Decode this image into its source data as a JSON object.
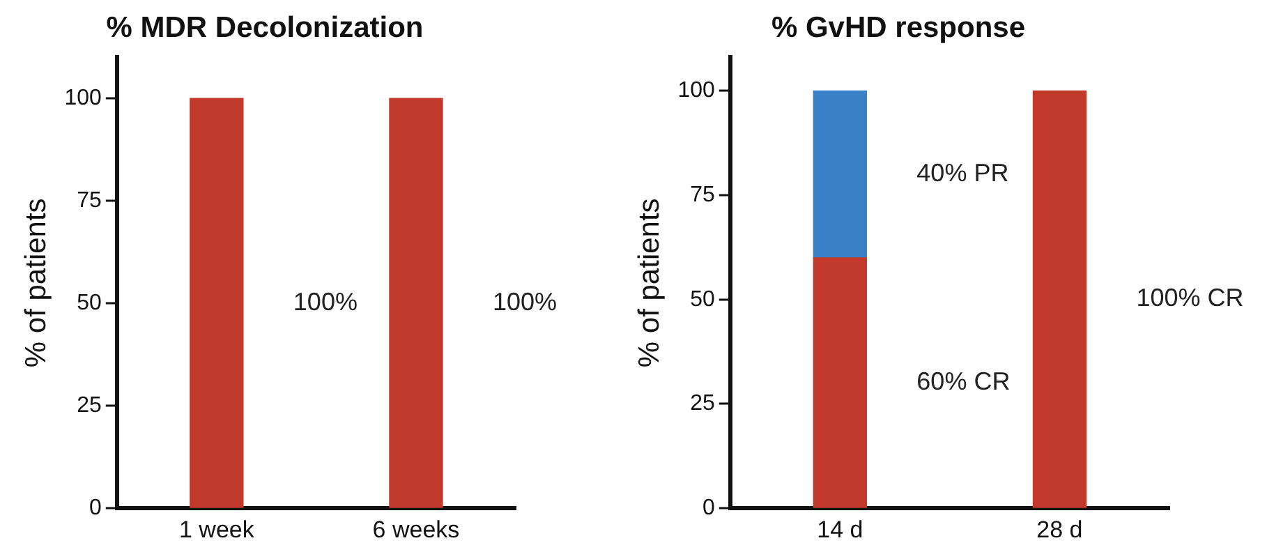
{
  "chart_data": [
    {
      "type": "bar",
      "title": "% MDR Decolonization",
      "ylabel": "% of patients",
      "categories": [
        "1 week",
        "6 weeks"
      ],
      "ylim": [
        0,
        110
      ],
      "yticks": [
        0,
        25,
        50,
        75,
        100
      ],
      "series": [
        {
          "color": "#c0392b",
          "values": [
            100,
            100
          ]
        }
      ],
      "annotations": [
        "100%",
        "100%"
      ]
    },
    {
      "type": "bar",
      "title": "% GvHD response",
      "ylabel": "% of patients",
      "categories": [
        "14 d",
        "28 d"
      ],
      "ylim": [
        0,
        108
      ],
      "yticks": [
        0,
        25,
        50,
        75,
        100
      ],
      "stacked": true,
      "series": [
        {
          "color": "#c0392b",
          "values": [
            60,
            100
          ]
        },
        {
          "color": "#3a80c6",
          "values": [
            40,
            null
          ]
        }
      ],
      "annotations": [
        "60% CR",
        "40% PR",
        "100% CR"
      ]
    }
  ]
}
